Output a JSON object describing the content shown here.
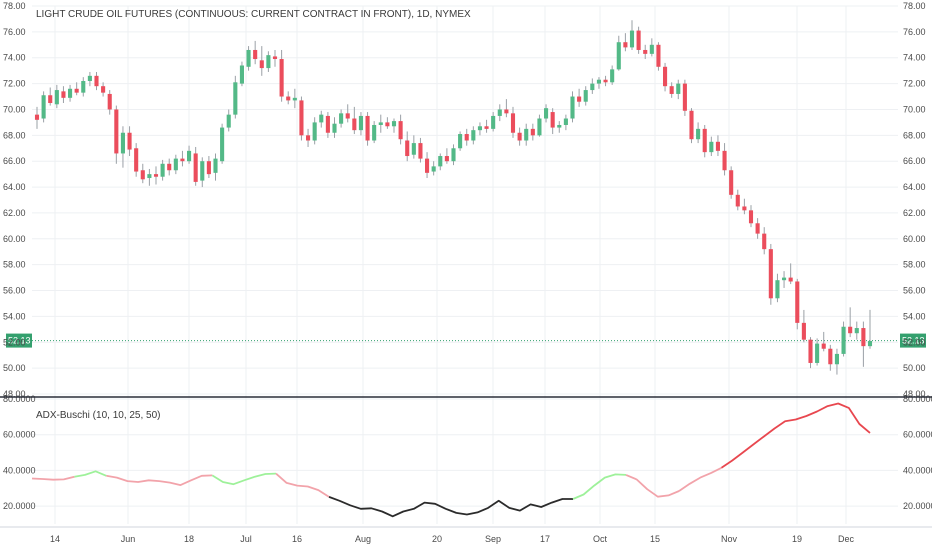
{
  "chart_data": [
    {
      "type": "candlestick",
      "title": "LIGHT CRUDE OIL FUTURES (CONTINUOUS: CURRENT CONTRACT IN FRONT), 1D, NYMEX",
      "ylim": [
        48,
        78
      ],
      "y_ticks": [
        "48.00",
        "50.00",
        "52.00",
        "54.00",
        "56.00",
        "58.00",
        "60.00",
        "62.00",
        "64.00",
        "66.00",
        "68.00",
        "70.00",
        "72.00",
        "74.00",
        "76.00",
        "78.00"
      ],
      "last_price": 52.13,
      "last_price_label": "52.13",
      "colors": {
        "up": "#53b987",
        "down": "#eb4d5c",
        "last": "#34a06e",
        "grid": "#eef0f3",
        "wick": "#9aa0a6"
      },
      "candles": [
        {
          "o": 69.6,
          "h": 70.2,
          "l": 68.5,
          "c": 69.2
        },
        {
          "o": 69.3,
          "h": 71.4,
          "l": 69.0,
          "c": 71.1
        },
        {
          "o": 71.1,
          "h": 71.7,
          "l": 70.3,
          "c": 70.5
        },
        {
          "o": 70.4,
          "h": 71.9,
          "l": 70.1,
          "c": 71.5
        },
        {
          "o": 71.4,
          "h": 71.8,
          "l": 70.5,
          "c": 70.9
        },
        {
          "o": 70.9,
          "h": 71.9,
          "l": 70.6,
          "c": 71.6
        },
        {
          "o": 71.6,
          "h": 72.1,
          "l": 71.1,
          "c": 71.3
        },
        {
          "o": 71.3,
          "h": 72.5,
          "l": 71.0,
          "c": 72.2
        },
        {
          "o": 72.2,
          "h": 72.9,
          "l": 71.8,
          "c": 72.6
        },
        {
          "o": 72.6,
          "h": 72.9,
          "l": 71.5,
          "c": 71.8
        },
        {
          "o": 71.8,
          "h": 72.1,
          "l": 71.0,
          "c": 71.3
        },
        {
          "o": 71.2,
          "h": 71.5,
          "l": 69.6,
          "c": 70.0
        },
        {
          "o": 70.0,
          "h": 70.3,
          "l": 65.8,
          "c": 66.6
        },
        {
          "o": 66.6,
          "h": 68.7,
          "l": 65.5,
          "c": 68.2
        },
        {
          "o": 68.2,
          "h": 68.7,
          "l": 66.4,
          "c": 66.9
        },
        {
          "o": 67.0,
          "h": 67.4,
          "l": 64.8,
          "c": 65.2
        },
        {
          "o": 65.3,
          "h": 65.8,
          "l": 64.3,
          "c": 64.6
        },
        {
          "o": 64.7,
          "h": 65.4,
          "l": 64.1,
          "c": 65.0
        },
        {
          "o": 65.0,
          "h": 65.6,
          "l": 64.2,
          "c": 64.8
        },
        {
          "o": 64.8,
          "h": 66.1,
          "l": 64.5,
          "c": 65.8
        },
        {
          "o": 65.8,
          "h": 66.2,
          "l": 64.9,
          "c": 65.3
        },
        {
          "o": 65.3,
          "h": 66.5,
          "l": 65.0,
          "c": 66.2
        },
        {
          "o": 66.2,
          "h": 66.8,
          "l": 65.6,
          "c": 66.0
        },
        {
          "o": 66.0,
          "h": 67.2,
          "l": 65.8,
          "c": 66.8
        },
        {
          "o": 66.6,
          "h": 67.1,
          "l": 64.1,
          "c": 64.4
        },
        {
          "o": 64.5,
          "h": 66.3,
          "l": 64.0,
          "c": 66.0
        },
        {
          "o": 66.0,
          "h": 66.4,
          "l": 64.7,
          "c": 65.0
        },
        {
          "o": 65.1,
          "h": 66.6,
          "l": 64.5,
          "c": 66.2
        },
        {
          "o": 66.0,
          "h": 68.9,
          "l": 65.8,
          "c": 68.6
        },
        {
          "o": 68.6,
          "h": 70.0,
          "l": 68.3,
          "c": 69.6
        },
        {
          "o": 69.6,
          "h": 72.6,
          "l": 69.3,
          "c": 72.1
        },
        {
          "o": 72.0,
          "h": 73.7,
          "l": 71.8,
          "c": 73.4
        },
        {
          "o": 73.3,
          "h": 74.9,
          "l": 73.0,
          "c": 74.6
        },
        {
          "o": 74.6,
          "h": 75.3,
          "l": 73.5,
          "c": 73.9
        },
        {
          "o": 73.8,
          "h": 74.9,
          "l": 72.6,
          "c": 73.2
        },
        {
          "o": 73.2,
          "h": 74.5,
          "l": 72.9,
          "c": 74.2
        },
        {
          "o": 74.1,
          "h": 74.6,
          "l": 73.3,
          "c": 73.9
        },
        {
          "o": 73.9,
          "h": 74.6,
          "l": 70.6,
          "c": 71.0
        },
        {
          "o": 71.0,
          "h": 71.4,
          "l": 70.4,
          "c": 70.7
        },
        {
          "o": 70.7,
          "h": 71.6,
          "l": 70.1,
          "c": 70.9
        },
        {
          "o": 70.7,
          "h": 71.0,
          "l": 67.6,
          "c": 68.0
        },
        {
          "o": 68.0,
          "h": 68.5,
          "l": 67.1,
          "c": 67.6
        },
        {
          "o": 67.6,
          "h": 69.4,
          "l": 67.3,
          "c": 69.0
        },
        {
          "o": 69.0,
          "h": 69.9,
          "l": 68.6,
          "c": 69.6
        },
        {
          "o": 69.5,
          "h": 69.8,
          "l": 67.8,
          "c": 68.2
        },
        {
          "o": 68.2,
          "h": 69.4,
          "l": 67.8,
          "c": 68.9
        },
        {
          "o": 68.9,
          "h": 70.0,
          "l": 68.6,
          "c": 69.7
        },
        {
          "o": 69.7,
          "h": 70.4,
          "l": 69.0,
          "c": 69.3
        },
        {
          "o": 69.3,
          "h": 70.2,
          "l": 68.1,
          "c": 68.4
        },
        {
          "o": 68.4,
          "h": 69.8,
          "l": 68.0,
          "c": 69.5
        },
        {
          "o": 69.5,
          "h": 69.8,
          "l": 67.2,
          "c": 67.6
        },
        {
          "o": 67.6,
          "h": 69.1,
          "l": 67.4,
          "c": 68.8
        },
        {
          "o": 68.8,
          "h": 69.6,
          "l": 68.2,
          "c": 69.0
        },
        {
          "o": 69.0,
          "h": 69.4,
          "l": 68.5,
          "c": 68.7
        },
        {
          "o": 68.7,
          "h": 69.3,
          "l": 68.2,
          "c": 69.1
        },
        {
          "o": 69.1,
          "h": 69.6,
          "l": 67.3,
          "c": 67.7
        },
        {
          "o": 67.6,
          "h": 68.3,
          "l": 66.0,
          "c": 66.4
        },
        {
          "o": 66.5,
          "h": 68.0,
          "l": 66.2,
          "c": 67.4
        },
        {
          "o": 67.4,
          "h": 67.8,
          "l": 65.9,
          "c": 66.2
        },
        {
          "o": 66.2,
          "h": 66.7,
          "l": 64.7,
          "c": 65.1
        },
        {
          "o": 65.2,
          "h": 66.0,
          "l": 64.9,
          "c": 65.6
        },
        {
          "o": 65.6,
          "h": 66.6,
          "l": 65.3,
          "c": 66.4
        },
        {
          "o": 66.4,
          "h": 67.0,
          "l": 65.8,
          "c": 66.0
        },
        {
          "o": 66.0,
          "h": 67.3,
          "l": 65.7,
          "c": 67.0
        },
        {
          "o": 67.0,
          "h": 68.3,
          "l": 66.8,
          "c": 68.1
        },
        {
          "o": 68.1,
          "h": 68.5,
          "l": 67.2,
          "c": 67.6
        },
        {
          "o": 67.6,
          "h": 68.7,
          "l": 67.3,
          "c": 68.4
        },
        {
          "o": 68.4,
          "h": 69.0,
          "l": 68.0,
          "c": 68.7
        },
        {
          "o": 68.7,
          "h": 69.2,
          "l": 68.2,
          "c": 68.5
        },
        {
          "o": 68.5,
          "h": 69.8,
          "l": 68.3,
          "c": 69.5
        },
        {
          "o": 69.5,
          "h": 70.4,
          "l": 69.1,
          "c": 70.0
        },
        {
          "o": 70.0,
          "h": 70.8,
          "l": 69.4,
          "c": 69.7
        },
        {
          "o": 69.7,
          "h": 70.2,
          "l": 67.8,
          "c": 68.2
        },
        {
          "o": 68.2,
          "h": 68.6,
          "l": 67.2,
          "c": 67.6
        },
        {
          "o": 67.6,
          "h": 68.9,
          "l": 67.2,
          "c": 68.5
        },
        {
          "o": 68.5,
          "h": 68.9,
          "l": 67.6,
          "c": 68.0
        },
        {
          "o": 68.0,
          "h": 69.6,
          "l": 67.9,
          "c": 69.3
        },
        {
          "o": 69.3,
          "h": 70.4,
          "l": 69.0,
          "c": 70.1
        },
        {
          "o": 69.8,
          "h": 70.1,
          "l": 68.1,
          "c": 68.6
        },
        {
          "o": 68.6,
          "h": 69.1,
          "l": 68.2,
          "c": 68.8
        },
        {
          "o": 68.8,
          "h": 69.6,
          "l": 68.4,
          "c": 69.3
        },
        {
          "o": 69.3,
          "h": 71.4,
          "l": 69.0,
          "c": 71.0
        },
        {
          "o": 71.0,
          "h": 71.6,
          "l": 70.2,
          "c": 70.6
        },
        {
          "o": 70.6,
          "h": 71.8,
          "l": 70.3,
          "c": 71.5
        },
        {
          "o": 71.5,
          "h": 72.4,
          "l": 71.2,
          "c": 72.0
        },
        {
          "o": 72.0,
          "h": 72.5,
          "l": 71.6,
          "c": 72.3
        },
        {
          "o": 72.3,
          "h": 72.6,
          "l": 71.8,
          "c": 72.1
        },
        {
          "o": 72.1,
          "h": 73.4,
          "l": 71.9,
          "c": 73.1
        },
        {
          "o": 73.1,
          "h": 75.7,
          "l": 73.0,
          "c": 75.2
        },
        {
          "o": 75.2,
          "h": 75.9,
          "l": 74.5,
          "c": 74.8
        },
        {
          "o": 74.8,
          "h": 76.9,
          "l": 74.6,
          "c": 76.1
        },
        {
          "o": 76.1,
          "h": 76.4,
          "l": 74.3,
          "c": 74.6
        },
        {
          "o": 74.6,
          "h": 75.0,
          "l": 73.9,
          "c": 74.3
        },
        {
          "o": 74.3,
          "h": 75.5,
          "l": 74.1,
          "c": 75.0
        },
        {
          "o": 75.0,
          "h": 75.2,
          "l": 73.0,
          "c": 73.3
        },
        {
          "o": 73.3,
          "h": 73.6,
          "l": 71.4,
          "c": 71.8
        },
        {
          "o": 71.8,
          "h": 72.1,
          "l": 70.9,
          "c": 71.2
        },
        {
          "o": 71.2,
          "h": 72.3,
          "l": 70.8,
          "c": 72.0
        },
        {
          "o": 72.0,
          "h": 72.3,
          "l": 69.5,
          "c": 69.9
        },
        {
          "o": 69.9,
          "h": 70.1,
          "l": 67.4,
          "c": 67.7
        },
        {
          "o": 67.7,
          "h": 69.0,
          "l": 67.4,
          "c": 68.5
        },
        {
          "o": 68.5,
          "h": 68.8,
          "l": 66.3,
          "c": 66.7
        },
        {
          "o": 66.7,
          "h": 67.9,
          "l": 66.4,
          "c": 67.5
        },
        {
          "o": 67.5,
          "h": 68.0,
          "l": 66.4,
          "c": 66.8
        },
        {
          "o": 66.8,
          "h": 67.4,
          "l": 64.9,
          "c": 65.3
        },
        {
          "o": 65.3,
          "h": 65.6,
          "l": 63.1,
          "c": 63.4
        },
        {
          "o": 63.4,
          "h": 63.8,
          "l": 62.2,
          "c": 62.5
        },
        {
          "o": 62.5,
          "h": 63.1,
          "l": 61.9,
          "c": 62.2
        },
        {
          "o": 62.2,
          "h": 62.6,
          "l": 60.9,
          "c": 61.2
        },
        {
          "o": 61.2,
          "h": 61.6,
          "l": 60.0,
          "c": 60.4
        },
        {
          "o": 60.4,
          "h": 60.9,
          "l": 58.8,
          "c": 59.2
        },
        {
          "o": 59.2,
          "h": 59.6,
          "l": 54.9,
          "c": 55.4
        },
        {
          "o": 55.4,
          "h": 57.3,
          "l": 55.1,
          "c": 56.8
        },
        {
          "o": 56.8,
          "h": 57.5,
          "l": 56.2,
          "c": 57.0
        },
        {
          "o": 57.0,
          "h": 58.1,
          "l": 56.5,
          "c": 56.7
        },
        {
          "o": 56.7,
          "h": 56.9,
          "l": 53.0,
          "c": 53.5
        },
        {
          "o": 53.5,
          "h": 54.5,
          "l": 52.0,
          "c": 52.2
        },
        {
          "o": 52.2,
          "h": 52.4,
          "l": 50.0,
          "c": 50.4
        },
        {
          "o": 50.4,
          "h": 52.3,
          "l": 50.2,
          "c": 51.9
        },
        {
          "o": 51.9,
          "h": 52.8,
          "l": 51.3,
          "c": 51.5
        },
        {
          "o": 51.5,
          "h": 51.8,
          "l": 49.8,
          "c": 50.3
        },
        {
          "o": 50.3,
          "h": 51.5,
          "l": 49.5,
          "c": 51.1
        },
        {
          "o": 51.1,
          "h": 53.6,
          "l": 50.9,
          "c": 53.2
        },
        {
          "o": 53.2,
          "h": 54.7,
          "l": 52.4,
          "c": 52.7
        },
        {
          "o": 52.7,
          "h": 53.6,
          "l": 52.2,
          "c": 53.1
        },
        {
          "o": 53.1,
          "h": 53.6,
          "l": 50.1,
          "c": 51.7
        },
        {
          "o": 51.7,
          "h": 54.5,
          "l": 51.5,
          "c": 52.1
        }
      ]
    },
    {
      "type": "line",
      "title": "ADX-Buschi (10, 10, 25, 50)",
      "ylim": [
        10,
        80
      ],
      "y_ticks": [
        "20.0000",
        "40.0000",
        "60.0000",
        "80.0000"
      ],
      "x_labels": [
        "14",
        "Jun",
        "18",
        "Jul",
        "16",
        "Aug",
        "20",
        "Sep",
        "17",
        "Oct",
        "15",
        "Nov",
        "19",
        "Dec"
      ],
      "colors": {
        "falling": "#f2a3aa",
        "rising": "#9ef19a",
        "weak": "#2b2b2b",
        "strong": "#e8474f"
      },
      "series": [
        {
          "color": "falling",
          "values": [
            35.5,
            35.2,
            34.8,
            35.0,
            36.5
          ]
        },
        {
          "color": "rising",
          "values": [
            36.5,
            37.5,
            39.5,
            37.0
          ]
        },
        {
          "color": "falling",
          "values": [
            37.0,
            36.0,
            34.0,
            33.5,
            34.5,
            34.0,
            33.2,
            31.8,
            34.5,
            37.0,
            37.2
          ]
        },
        {
          "color": "rising",
          "values": [
            37.2,
            33.5,
            32.3,
            34.5,
            36.5,
            38.0,
            38.2
          ]
        },
        {
          "color": "falling",
          "values": [
            38.2,
            33.0,
            31.5,
            31.0,
            29.0,
            25.2
          ]
        },
        {
          "color": "weak",
          "values": [
            25.2,
            23.0,
            20.5,
            18.5,
            18.8,
            17.0,
            14.3,
            17.0,
            18.5,
            22.0,
            21.3,
            18.5,
            16.2,
            15.3,
            16.5,
            19.0,
            23.0,
            19.0,
            17.5,
            21.0,
            19.5,
            22.0,
            24.0,
            24.0
          ]
        },
        {
          "color": "rising",
          "values": [
            24.0,
            26.5,
            31.5,
            36.0,
            37.8,
            37.5
          ]
        },
        {
          "color": "falling",
          "values": [
            37.5,
            35.0,
            29.5,
            25.3,
            26.0,
            28.5
          ]
        },
        {
          "color": "falling",
          "values": [
            28.5,
            32.5,
            36.0,
            38.5,
            41.5
          ]
        },
        {
          "color": "strong",
          "values": [
            41.5,
            45.5,
            50.0,
            54.5,
            59.0,
            63.5,
            67.5,
            68.5,
            70.5,
            73.0,
            76.0,
            77.5,
            75.0,
            66.0,
            61.0
          ]
        }
      ]
    }
  ]
}
